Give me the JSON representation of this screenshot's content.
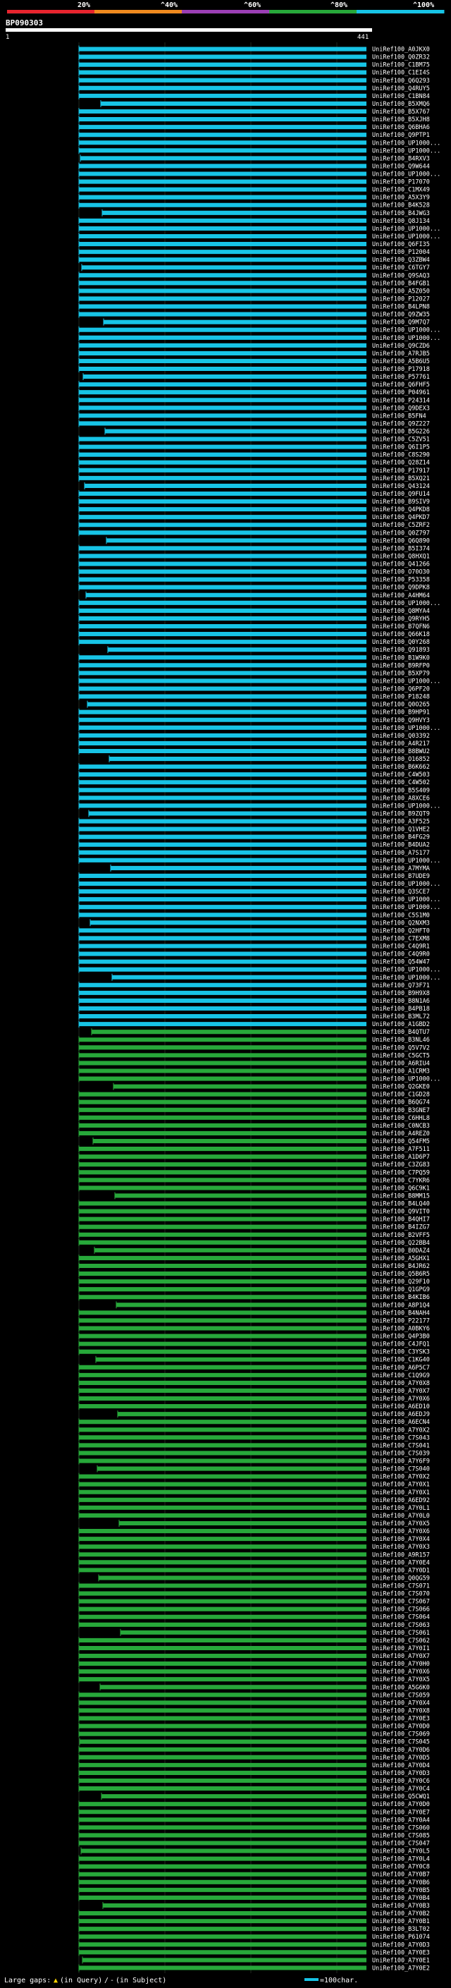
{
  "header": {
    "scale_labels": [
      "20%",
      "^40%",
      "^60%",
      "^80%",
      "^100%"
    ],
    "scale_colors": [
      "#e8242e",
      "#f08a1e",
      "#9b3fb5",
      "#27a83a",
      "#17c4e6"
    ],
    "query_id": "BP090303",
    "ruler_start": "1",
    "ruler_end": "441"
  },
  "footer": {
    "gaps_label": "Large gaps:",
    "gaps_query": "(in Query)",
    "gaps_sep": "/",
    "gaps_subject": "(in Subject)",
    "scale_label": "=100char."
  },
  "chart_data": {
    "type": "alignment",
    "query_length": 441,
    "x_range": [
      1,
      441
    ],
    "color_scheme": {
      "cyan": "#17c4e6",
      "green": "#27a83a"
    },
    "hits": [
      "UniRef100_A0JKX0",
      "UniRef100_Q0ZR32",
      "UniRef100_C1BM75",
      "UniRef100_C1EI4S",
      "UniRef100_Q6Q293",
      "UniRef100_Q4RUY5",
      "UniRef100_C1BN84",
      "UniRef100_B5XMQ6",
      "UniRef100_B5X767",
      "UniRef100_B5XJH8",
      "UniRef100_Q6BHA6",
      "UniRef100_Q9PTP1",
      "UniRef100_UP1000...",
      "UniRef100_UP1000...",
      "UniRef100_B4RXV3",
      "UniRef100_Q9W644",
      "UniRef100_UP1000...",
      "UniRef100_P17070",
      "UniRef100_C1MX49",
      "UniRef100_A5X3Y9",
      "UniRef100_B4K528",
      "UniRef100_B4JWG3",
      "UniRef100_Q8J134",
      "UniRef100_UP1000...",
      "UniRef100_UP1000...",
      "UniRef100_Q6FI35",
      "UniRef100_P12004",
      "UniRef100_Q3ZBW4",
      "UniRef100_C6TGY7",
      "UniRef100_Q9SAQ3",
      "UniRef100_B4FGB1",
      "UniRef100_A5Z050",
      "UniRef100_P12027",
      "UniRef100_B4LPN8",
      "UniRef100_Q9ZW35",
      "UniRef100_Q9M7Q7",
      "UniRef100_UP1000...",
      "UniRef100_UP1000...",
      "UniRef100_Q9CZD6",
      "UniRef100_A7RJB5",
      "UniRef100_A5B6U5",
      "UniRef100_P17918",
      "UniRef100_P57761",
      "UniRef100_Q6FHF5",
      "UniRef100_P04961",
      "UniRef100_P24314",
      "UniRef100_Q9DEX3",
      "UniRef100_B5FN4",
      "UniRef100_Q9Z227",
      "UniRef100_B5G226",
      "UniRef100_C5ZV51",
      "UniRef100_Q6I1P5",
      "UniRef100_C8S290",
      "UniRef100_Q28Z14",
      "UniRef100_P17917",
      "UniRef100_B5XQ21",
      "UniRef100_Q43124",
      "UniRef100_Q9FU14",
      "UniRef100_B9SIV9",
      "UniRef100_Q4PKD8",
      "UniRef100_Q4PKD7",
      "UniRef100_C5ZRF2",
      "UniRef100_Q0Z797",
      "UniRef100_Q6Q890",
      "UniRef100_B5I374",
      "UniRef100_Q8HXQ1",
      "UniRef100_Q41266",
      "UniRef100_O70O30",
      "UniRef100_P53358",
      "UniRef100_Q9DPK8",
      "UniRef100_A4HM64",
      "UniRef100_UP1000...",
      "UniRef100_Q8MYA4",
      "UniRef100_Q9RYH5",
      "UniRef100_B7QFN6",
      "UniRef100_Q66K18",
      "UniRef100_Q0Y268",
      "UniRef100_Q91893",
      "UniRef100_B1W9K0",
      "UniRef100_B9RFP0",
      "UniRef100_B5XP79",
      "UniRef100_UP1000...",
      "UniRef100_Q6PF20",
      "UniRef100_P18248",
      "UniRef100_Q0O265",
      "UniRef100_B9HP91",
      "UniRef100_Q9HVY3",
      "UniRef100_UP1000...",
      "UniRef100_Q03392",
      "UniRef100_A4R217",
      "UniRef100_B8BWU2",
      "UniRef100_O16852",
      "UniRef100_B6K662",
      "UniRef100_C4W503",
      "UniRef100_C4W502",
      "UniRef100_B5S409",
      "UniRef100_A8XCE6",
      "UniRef100_UP1000...",
      "UniRef100_B9ZQT9",
      "UniRef100_A3F525",
      "UniRef100_Q1VHE2",
      "UniRef100_B4FG29",
      "UniRef100_B4DUA2",
      "UniRef100_A7S177",
      "UniRef100_UP1000...",
      "UniRef100_A7MYMA",
      "UniRef100_B7UDE9",
      "UniRef100_UP1000...",
      "UniRef100_Q3SCE7",
      "UniRef100_UP1000...",
      "UniRef100_UP1000...",
      "UniRef100_C5S1M0",
      "UniRef100_Q2NXM3",
      "UniRef100_Q2HFT0",
      "UniRef100_C7EXM8",
      "UniRef100_C4Q9R1",
      "UniRef100_C4Q9R0",
      "UniRef100_Q54W47",
      "UniRef100_UP1000...",
      "UniRef100_UP1000...",
      "UniRef100_Q73F71",
      "UniRef100_B9H9X8",
      "UniRef100_B8N1A6",
      "UniRef100_B4PB18",
      "UniRef100_B3ML72",
      "UniRef100_A1GBD2",
      "UniRef100_B4QTU7",
      "UniRef100_B3NL46",
      "UniRef100_Q5V7V2",
      "UniRef100_C5GCT5",
      "UniRef100_A6RIU4",
      "UniRef100_A1CRM3",
      "UniRef100_UP1000...",
      "UniRef100_Q2GKE0",
      "UniRef100_C1GD28",
      "UniRef100_B6QG74",
      "UniRef100_B3GNE7",
      "UniRef100_C6HHL8",
      "UniRef100_C0NCB3",
      "UniRef100_A4REZ0",
      "UniRef100_Q54FM5",
      "UniRef100_A7F511",
      "UniRef100_A1D6P7",
      "UniRef100_C3ZG83",
      "UniRef100_C7PQ59",
      "UniRef100_C7YKR6",
      "UniRef100_Q6C9K1",
      "UniRef100_B8MM15",
      "UniRef100_B4LQ40",
      "UniRef100_Q9VIT0",
      "UniRef100_B4QHI7",
      "UniRef100_B4IZG7",
      "UniRef100_B2VFF5",
      "UniRef100_Q22BB4",
      "UniRef100_B0DAZ4",
      "UniRef100_A5GHX1",
      "UniRef100_B4JR62",
      "UniRef100_Q5B6R5",
      "UniRef100_Q29F10",
      "UniRef100_Q1GPG9",
      "UniRef100_B4KIB6",
      "UniRef100_A8P1Q4",
      "UniRef100_B4NAH4",
      "UniRef100_P22177",
      "UniRef100_A0BKY6",
      "UniRef100_Q4P3B0",
      "UniRef100_C4JFQ1",
      "UniRef100_C3YSK3",
      "UniRef100_C1KG40",
      "UniRef100_A6P5C7",
      "UniRef100_C1Q9G9",
      "UniRef100_A7Y0X8",
      "UniRef100_A7Y0X7",
      "UniRef100_A7Y0X6",
      "UniRef100_A6ED10",
      "UniRef100_A6EDJ9",
      "UniRef100_A6ECN4",
      "UniRef100_A7Y0X2",
      "UniRef100_C7S043",
      "UniRef100_C7S041",
      "UniRef100_C7S039",
      "UniRef100_A7Y6F9",
      "UniRef100_C7S040",
      "UniRef100_A7Y0X2",
      "UniRef100_A7Y0X1",
      "UniRef100_A7Y0X1",
      "UniRef100_A6ED92",
      "UniRef100_A7Y0L1",
      "UniRef100_A7Y0L0",
      "UniRef100_A7Y0X5",
      "UniRef100_A7Y0X6",
      "UniRef100_A7Y0X4",
      "UniRef100_A7Y0X3",
      "UniRef100_A9R157",
      "UniRef100_A7Y0E4",
      "UniRef100_A7Y0D1",
      "UniRef100_Q0QG59",
      "UniRef100_C7S071",
      "UniRef100_C7S070",
      "UniRef100_C7S067",
      "UniRef100_C7S066",
      "UniRef100_C7S064",
      "UniRef100_C7S063",
      "UniRef100_C7S061",
      "UniRef100_C7S062",
      "UniRef100_A7Y0I1",
      "UniRef100_A7Y0X7",
      "UniRef100_A7Y0H0",
      "UniRef100_A7Y0X6",
      "UniRef100_A7Y0X5",
      "UniRef100_A5G6K0",
      "UniRef100_C7S059",
      "UniRef100_A7Y0X4",
      "UniRef100_A7Y0X8",
      "UniRef100_A7Y0E3",
      "UniRef100_A7Y0D0",
      "UniRef100_C7S069",
      "UniRef100_C7S045",
      "UniRef100_A7Y0D6",
      "UniRef100_A7Y0D5",
      "UniRef100_A7Y0D4",
      "UniRef100_A7Y0D3",
      "UniRef100_A7Y0C6",
      "UniRef100_A7Y0C4",
      "UniRef100_Q5CWQ1",
      "UniRef100_A7Y0D0",
      "UniRef100_A7Y0E7",
      "UniRef100_A7Y0A4",
      "UniRef100_C7S060",
      "UniRef100_C7S085",
      "UniRef100_C7S047",
      "UniRef100_A7Y0L5",
      "UniRef100_A7Y0L4",
      "UniRef100_A7Y0C8",
      "UniRef100_A7Y0B7",
      "UniRef100_A7Y0B6",
      "UniRef100_A7Y0B5",
      "UniRef100_A7Y0B4",
      "UniRef100_A7Y0B3",
      "UniRef100_A7Y0B2",
      "UniRef100_A7Y0B1",
      "UniRef100_B3LT02",
      "UniRef100_P61074",
      "UniRef100_A7Y0D3",
      "UniRef100_A7Y0E3",
      "UniRef100_A7Y0E1",
      "UniRef100_A7Y0E2"
    ]
  }
}
